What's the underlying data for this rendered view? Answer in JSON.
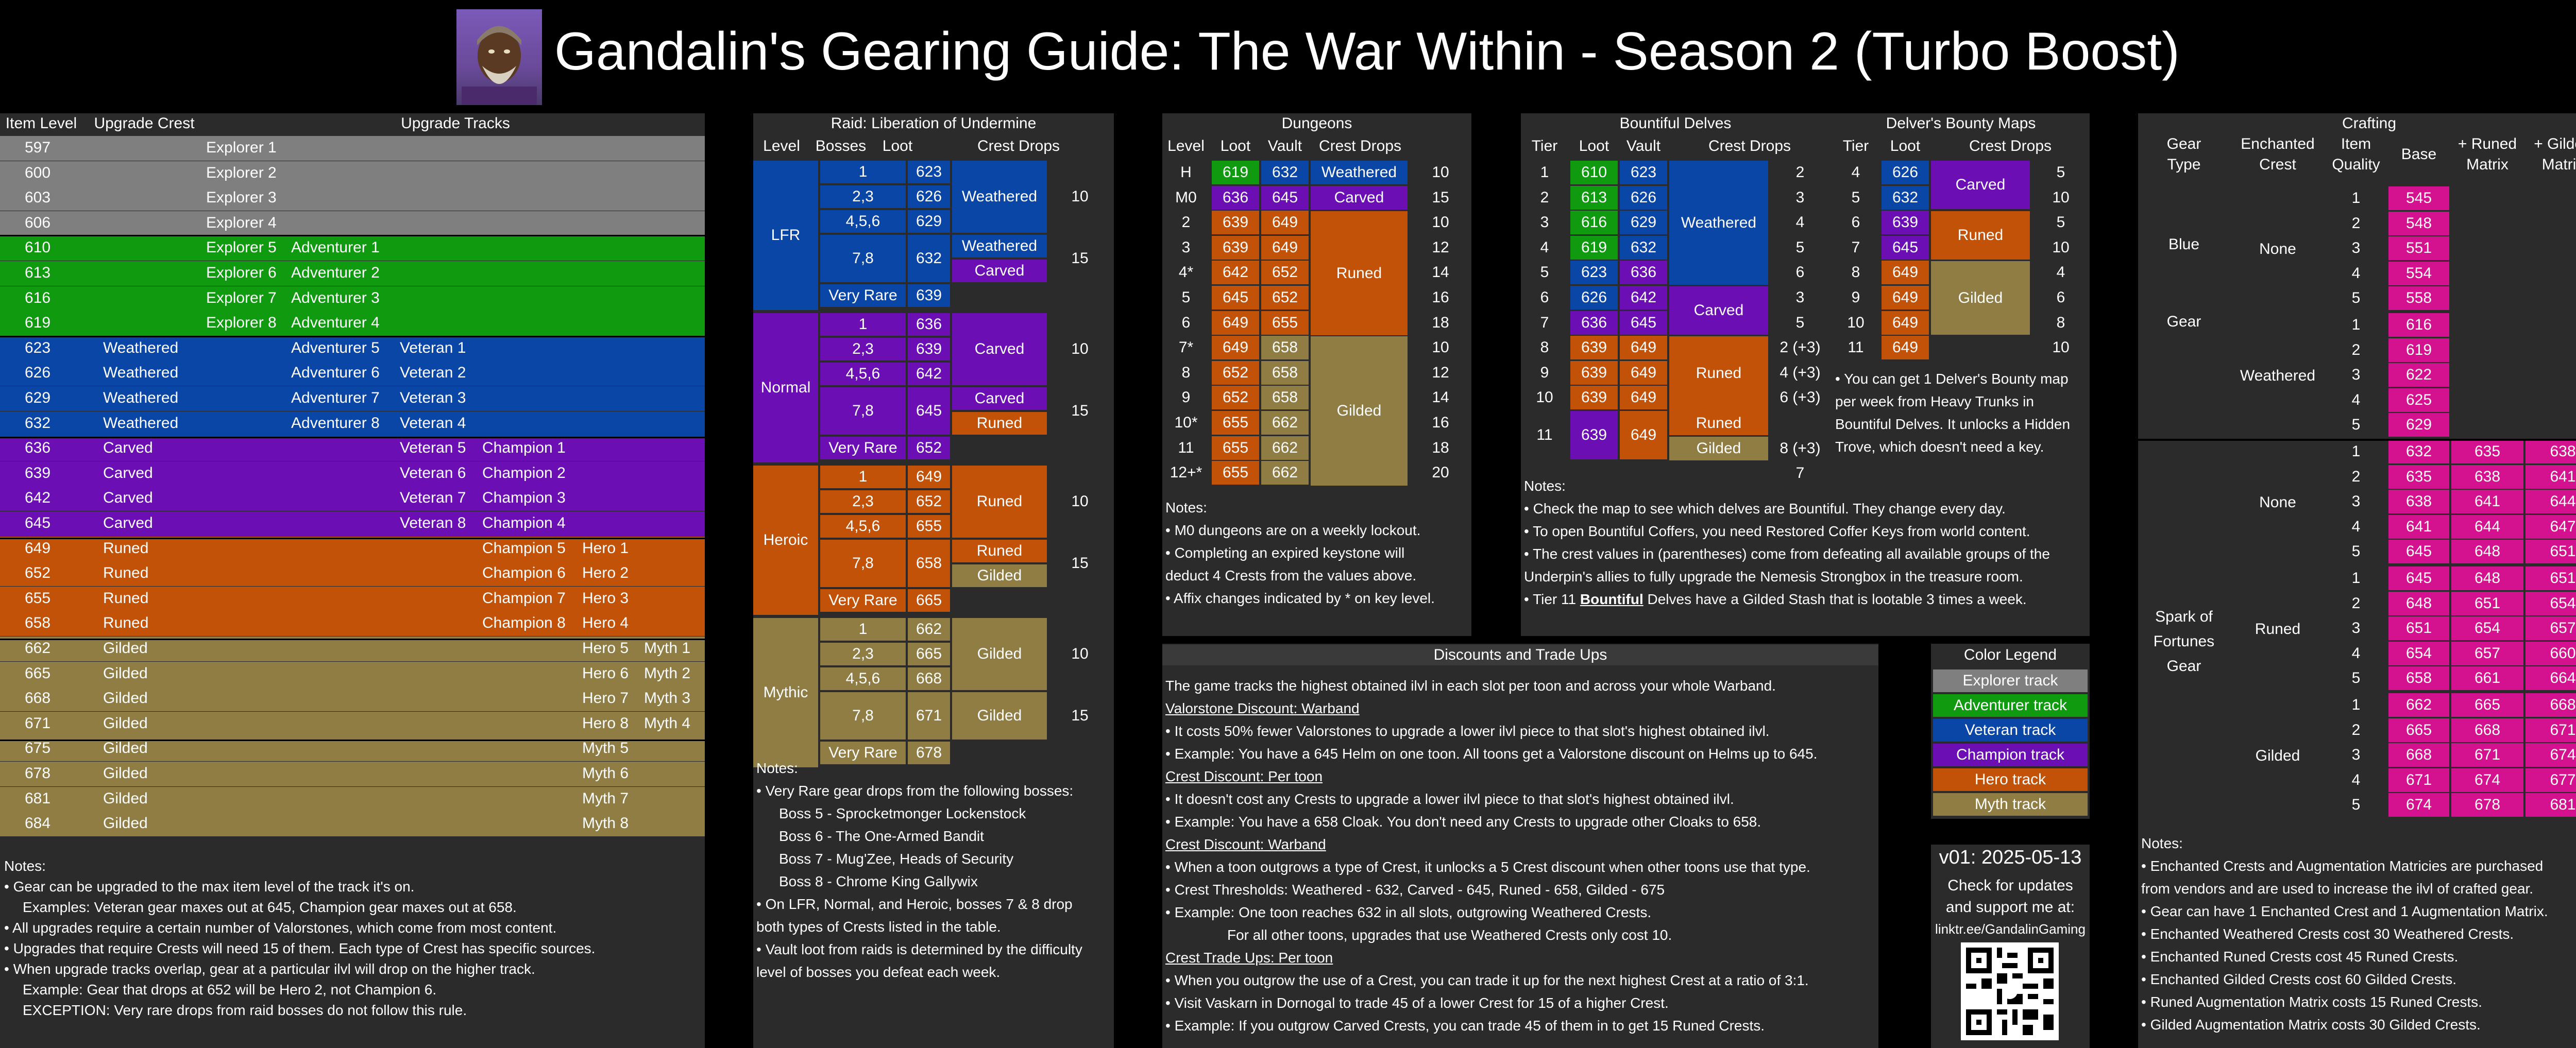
{
  "title": "Gandalin's Gearing Guide: The War Within - Season 2 (Turbo Boost)",
  "upgrade": {
    "headers": [
      "Item Level",
      "Upgrade Crest",
      "Upgrade Tracks"
    ],
    "rows": [
      [
        "597",
        "",
        "Explorer 1",
        "",
        "",
        "",
        "gray"
      ],
      [
        "600",
        "",
        "Explorer 2",
        "",
        "",
        "",
        "gray"
      ],
      [
        "603",
        "",
        "Explorer 3",
        "",
        "",
        "",
        "gray"
      ],
      [
        "606",
        "",
        "Explorer 4",
        "",
        "",
        "",
        "gray"
      ],
      [
        "610",
        "",
        "Explorer 5",
        "Adventurer 1",
        "",
        "",
        "green"
      ],
      [
        "613",
        "",
        "Explorer 6",
        "Adventurer 2",
        "",
        "",
        "green"
      ],
      [
        "616",
        "",
        "Explorer 7",
        "Adventurer 3",
        "",
        "",
        "green"
      ],
      [
        "619",
        "",
        "Explorer 8",
        "Adventurer 4",
        "",
        "",
        "green"
      ],
      [
        "623",
        "Weathered",
        "",
        "Adventurer 5",
        "Veteran 1",
        "",
        "blue"
      ],
      [
        "626",
        "Weathered",
        "",
        "Adventurer 6",
        "Veteran 2",
        "",
        "blue"
      ],
      [
        "629",
        "Weathered",
        "",
        "Adventurer 7",
        "Veteran 3",
        "",
        "blue"
      ],
      [
        "632",
        "Weathered",
        "",
        "Adventurer 8",
        "Veteran 4",
        "",
        "blue"
      ],
      [
        "636",
        "Carved",
        "",
        "",
        "Veteran 5",
        "Champion 1",
        "purple"
      ],
      [
        "639",
        "Carved",
        "",
        "",
        "Veteran 6",
        "Champion 2",
        "purple"
      ],
      [
        "642",
        "Carved",
        "",
        "",
        "Veteran 7",
        "Champion 3",
        "purple"
      ],
      [
        "645",
        "Carved",
        "",
        "",
        "Veteran 8",
        "Champion 4",
        "purple"
      ],
      [
        "649",
        "Runed",
        "",
        "",
        "",
        "Champion 5|Hero 1",
        "orange"
      ],
      [
        "652",
        "Runed",
        "",
        "",
        "",
        "Champion 6|Hero 2",
        "orange"
      ],
      [
        "655",
        "Runed",
        "",
        "",
        "",
        "Champion 7|Hero 3",
        "orange"
      ],
      [
        "658",
        "Runed",
        "",
        "",
        "",
        "Champion 8|Hero 4",
        "orange"
      ],
      [
        "662",
        "Gilded",
        "",
        "",
        "",
        "Hero 5|Myth 1",
        "gold"
      ],
      [
        "665",
        "Gilded",
        "",
        "",
        "",
        "Hero 6|Myth 2",
        "gold"
      ],
      [
        "668",
        "Gilded",
        "",
        "",
        "",
        "Hero 7|Myth 3",
        "gold"
      ],
      [
        "671",
        "Gilded",
        "",
        "",
        "",
        "Hero 8|Myth 4",
        "gold"
      ],
      [
        "675",
        "Gilded",
        "",
        "",
        "",
        "|Myth 5",
        "gold"
      ],
      [
        "678",
        "Gilded",
        "",
        "",
        "",
        "|Myth 6",
        "gold"
      ],
      [
        "681",
        "Gilded",
        "",
        "",
        "",
        "|Myth 7",
        "gold"
      ],
      [
        "684",
        "Gilded",
        "",
        "",
        "",
        "|Myth 8",
        "gold"
      ]
    ],
    "notes": [
      "Notes:",
      "• Gear can be upgraded to the max item level of the track it's on.",
      "Examples: Veteran gear maxes out at 645, Champion gear maxes out at 658.",
      "• All upgrades require a certain number of Valorstones, which come from most content.",
      "• Upgrades that require Crests will need 15 of them. Each type of Crest has specific sources.",
      "• When upgrade tracks overlap, gear at a particular ilvl will drop on the higher track.",
      "Example: Gear that drops at 652 will be Hero 2, not Champion 6.",
      "EXCEPTION: Very rare drops from raid bosses do not follow this rule."
    ]
  },
  "raid": {
    "title": "Raid: Liberation of Undermine",
    "headers": [
      "Level",
      "Bosses",
      "Loot",
      "Crest Drops"
    ],
    "levels": [
      "LFR",
      "Normal",
      "Heroic",
      "Mythic"
    ],
    "bosses": [
      "1",
      "2,3",
      "4,5,6",
      "7,8",
      "Very Rare"
    ],
    "loot": [
      [
        "623",
        "626",
        "629",
        "632",
        "639"
      ],
      [
        "636",
        "639",
        "642",
        "645",
        "652"
      ],
      [
        "649",
        "652",
        "655",
        "658",
        "665"
      ],
      [
        "662",
        "665",
        "668",
        "671",
        "678"
      ]
    ],
    "crests": [
      [
        "Weathered",
        "Weathered",
        "Carved"
      ],
      [
        "Carved",
        "Carved",
        "Runed"
      ],
      [
        "Runed",
        "Runed",
        "Gilded"
      ],
      [
        "Gilded",
        "Gilded",
        ""
      ]
    ],
    "counts": [
      "10",
      "15"
    ],
    "notes": [
      "Notes:",
      "• Very Rare gear drops from the following bosses:",
      "Boss 5 - Sprocketmonger Lockenstock",
      "Boss 6 - The One-Armed Bandit",
      "Boss 7 - Mug'Zee, Heads of Security",
      "Boss 8 - Chrome King Gallywix",
      "• On LFR, Normal, and Heroic, bosses 7 & 8 drop",
      "both types of Crests listed in the table.",
      "• Vault loot from raids is determined by the difficulty",
      "level of bosses you defeat each week."
    ]
  },
  "dungeons": {
    "title": "Dungeons",
    "headers": [
      "Level",
      "Loot",
      "Vault",
      "Crest Drops"
    ],
    "rows": [
      [
        "H",
        "619",
        "632",
        "Weathered",
        "10"
      ],
      [
        "M0",
        "636",
        "645",
        "Carved",
        "15"
      ],
      [
        "2",
        "639",
        "649",
        "",
        "10"
      ],
      [
        "3",
        "639",
        "649",
        "",
        "12"
      ],
      [
        "4*",
        "642",
        "652",
        "Runed",
        "14"
      ],
      [
        "5",
        "645",
        "652",
        "",
        "16"
      ],
      [
        "6",
        "649",
        "655",
        "",
        "18"
      ],
      [
        "7*",
        "649",
        "658",
        "",
        "10"
      ],
      [
        "8",
        "652",
        "658",
        "",
        "12"
      ],
      [
        "9",
        "652",
        "658",
        "",
        "14"
      ],
      [
        "10*",
        "655",
        "662",
        "Gilded",
        "16"
      ],
      [
        "11",
        "655",
        "662",
        "",
        "18"
      ],
      [
        "12+*",
        "655",
        "662",
        "",
        "20"
      ]
    ],
    "notes": [
      "Notes:",
      "• M0 dungeons are on a weekly lockout.",
      "• Completing an expired keystone will",
      "deduct 4 Crests from the values above.",
      "• Affix changes indicated by * on key level."
    ]
  },
  "delves": {
    "title": "Bountiful Delves",
    "headers": [
      "Tier",
      "Loot",
      "Vault",
      "Crest Drops"
    ],
    "rows": [
      [
        "1",
        "610",
        "623",
        "2"
      ],
      [
        "2",
        "613",
        "626",
        "3"
      ],
      [
        "3",
        "616",
        "629",
        "4"
      ],
      [
        "4",
        "619",
        "632",
        "5"
      ],
      [
        "5",
        "623",
        "636",
        "6"
      ],
      [
        "6",
        "626",
        "642",
        "3"
      ],
      [
        "7",
        "636",
        "645",
        "5"
      ],
      [
        "8",
        "639",
        "649",
        "2 (+3)"
      ],
      [
        "9",
        "639",
        "649",
        "4 (+3)"
      ],
      [
        "10",
        "639",
        "649",
        "6 (+3)"
      ],
      [
        "11",
        "639",
        "649",
        "8 (+3)"
      ],
      [
        "",
        "",
        "",
        "7"
      ]
    ],
    "crests": [
      "Weathered",
      "Carved",
      "Runed",
      "Runed",
      "Gilded"
    ],
    "notes": [
      "Notes:",
      "• Check the map to see which delves are Bountiful. They change every day.",
      "• To open Bountiful Coffers, you need Restored Coffer Keys from world content.",
      "• The crest values in (parentheses) come from defeating all available groups of the",
      "Underpin's allies to fully upgrade the Nemesis Strongbox in the treasure room.",
      "• Tier 11 ",
      "Bountiful",
      " Delves have a Gilded Stash that is lootable 3 times a week."
    ]
  },
  "maps": {
    "title": "Delver's Bounty Maps",
    "headers": [
      "Tier",
      "Loot",
      "Crest Drops"
    ],
    "rows": [
      [
        "4",
        "626",
        "5"
      ],
      [
        "5",
        "632",
        "10"
      ],
      [
        "6",
        "639",
        "5"
      ],
      [
        "7",
        "645",
        "10"
      ],
      [
        "8",
        "649",
        "4"
      ],
      [
        "9",
        "649",
        "6"
      ],
      [
        "10",
        "649",
        "8"
      ],
      [
        "11",
        "649",
        "10"
      ]
    ],
    "crests": [
      "Carved",
      "Runed",
      "Gilded"
    ],
    "note": [
      "• You can get 1 Delver's Bounty map",
      "per week from Heavy Trunks in",
      "Bountiful Delves. It unlocks a Hidden",
      "Trove, which doesn't need a key."
    ]
  },
  "crafting": {
    "title": "Crafting",
    "headers": [
      "Gear",
      "Type",
      "Enchanted",
      "Crest",
      "Item",
      "Quality",
      "Base",
      "+ Runed",
      "Matrix",
      "+ Gilded",
      "Matrix"
    ],
    "types": [
      "Blue",
      "Gear",
      "Spark of",
      "Fortunes",
      "Gear"
    ],
    "crests": [
      "None",
      "Weathered",
      "None",
      "Runed",
      "Gilded"
    ],
    "base": [
      [
        "545",
        "548",
        "551",
        "554",
        "558"
      ],
      [
        "616",
        "619",
        "622",
        "625",
        "629"
      ],
      [
        "632",
        "635",
        "638",
        "641",
        "645"
      ],
      [
        "645",
        "648",
        "651",
        "654",
        "658"
      ],
      [
        "662",
        "665",
        "668",
        "671",
        "674"
      ]
    ],
    "runed": [
      [
        "635",
        "638",
        "641",
        "644",
        "648"
      ],
      [
        "648",
        "651",
        "654",
        "657",
        "661"
      ],
      [
        "665",
        "668",
        "671",
        "674",
        "678"
      ]
    ],
    "gilded": [
      [
        "638",
        "641",
        "644",
        "647",
        "651"
      ],
      [
        "651",
        "654",
        "657",
        "660",
        "664"
      ],
      [
        "668",
        "671",
        "674",
        "677",
        "681"
      ]
    ],
    "notes": [
      "Notes:",
      "• Enchanted Crests and Augmentation Matricies are purchased",
      "from vendors and are used to increase the ilvl of crafted gear.",
      "• Gear can have 1 Enchanted Crest and 1 Augmentation Matrix.",
      "• Enchanted Weathered Crests cost 30 Weathered Crests.",
      "• Enchanted Runed Crests cost 45 Runed Crests.",
      "• Enchanted Gilded Crests cost 60 Gilded Crests.",
      "• Runed Augmentation Matrix costs 15 Runed Crests.",
      "• Gilded Augmentation Matrix costs 30 Gilded Crests."
    ]
  },
  "discounts": {
    "title": "Discounts and Trade Ups",
    "lines": [
      "The game tracks the highest obtained ilvl in each slot per toon and across your whole Warband.",
      "Valorstone Discount: Warband",
      "• It costs 50% fewer Valorstones to upgrade a lower ilvl piece to that slot's highest obtained ilvl.",
      "• Example: You have a 645 Helm on one toon. All toons get a Valorstone discount on Helms up to 645.",
      "Crest Discount: Per toon",
      "• It doesn't cost any Crests to upgrade a lower ilvl piece to that slot's highest obtained ilvl.",
      "• Example: You have a 658 Cloak. You don't need any Crests to upgrade other Cloaks to 658.",
      "Crest Discount: Warband",
      "• When a toon outgrows a type of Crest, it unlocks a 5 Crest discount when other toons use that type.",
      "• Crest Thresholds: Weathered - 632, Carved - 645, Runed - 658, Gilded - 675",
      "• Example: One toon reaches 632 in all slots, outgrowing Weathered Crests.",
      "For all other toons, upgrades that use Weathered Crests only cost 10.",
      "Crest Trade Ups: Per toon",
      "• When you outgrow the use of a Crest, you can trade it up for the next highest Crest at a ratio of 3:1.",
      "• Visit Vaskarn in Dornogal to trade 45 of a lower Crest for 15 of a higher Crest.",
      "• Example: If you outgrow Carved Crests, you can trade 45 of them in to get 15 Runed Crests."
    ]
  },
  "legend": {
    "title": "Color Legend",
    "items": [
      "Explorer track",
      "Adventurer track",
      "Veteran track",
      "Champion track",
      "Hero track",
      "Myth track"
    ]
  },
  "version": {
    "title": "v01: 2025-05-13",
    "lines": [
      "Check for updates",
      "and support me at:",
      "linktr.ee/GandalinGaming"
    ]
  }
}
